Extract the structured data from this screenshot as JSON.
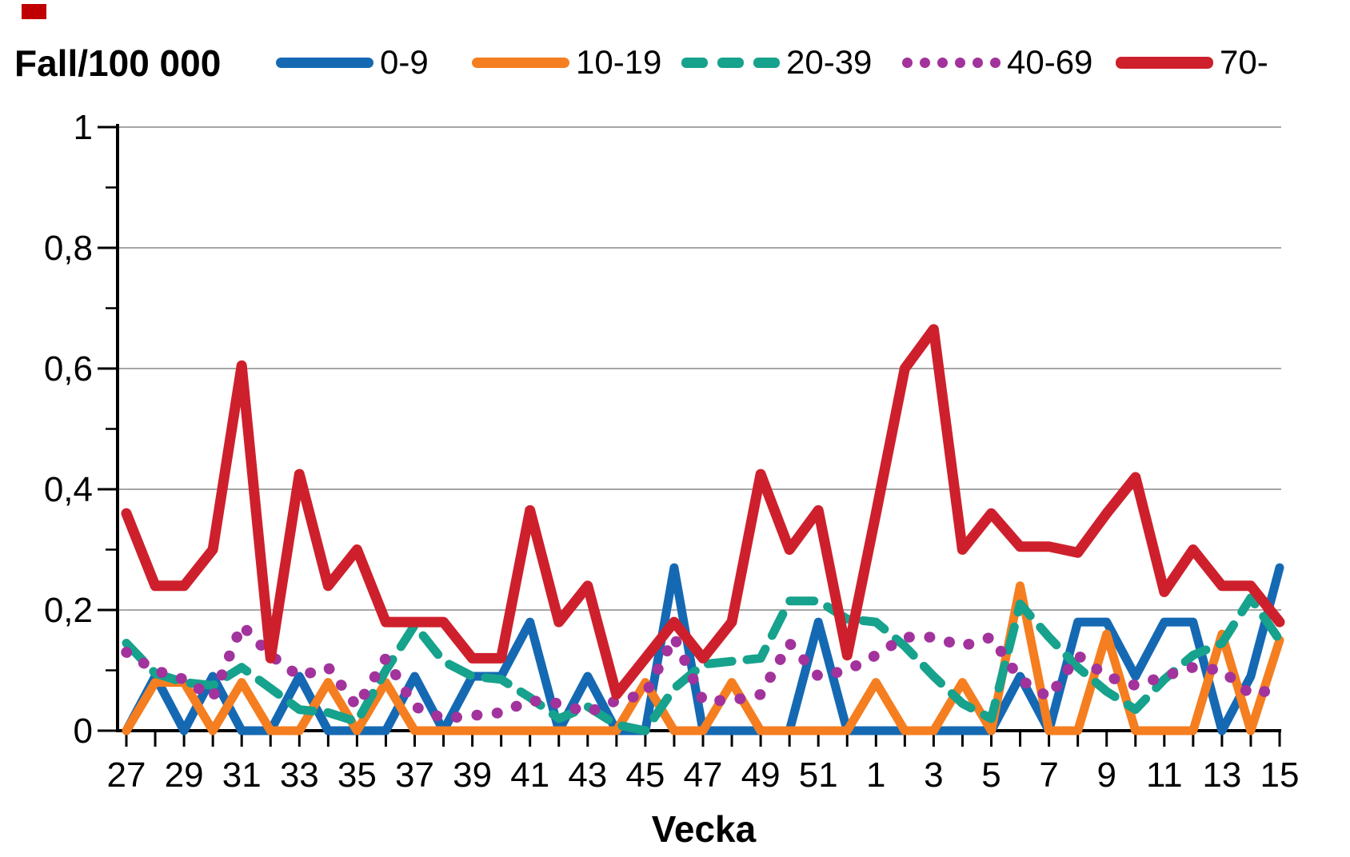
{
  "corner_marker_color": "#C00000",
  "chart_data": {
    "type": "line",
    "title": "Fall/100 000",
    "xlabel": "Vecka",
    "ylabel": "",
    "ylim": [
      0,
      1
    ],
    "grid": "horizontal",
    "legend_position": "top",
    "grid_color": "#A6A6A6",
    "axis_color": "#000000",
    "yticks": [
      {
        "v": 0,
        "label": "0"
      },
      {
        "v": 0.2,
        "label": "0,2"
      },
      {
        "v": 0.4,
        "label": "0,4"
      },
      {
        "v": 0.6,
        "label": "0,6"
      },
      {
        "v": 0.8,
        "label": "0,8"
      },
      {
        "v": 1,
        "label": "1"
      }
    ],
    "x_categories": [
      "27",
      "28",
      "29",
      "30",
      "31",
      "32",
      "33",
      "34",
      "35",
      "36",
      "37",
      "38",
      "39",
      "40",
      "41",
      "42",
      "43",
      "44",
      "45",
      "46",
      "47",
      "48",
      "49",
      "50",
      "51",
      "52",
      "1",
      "2",
      "3",
      "4",
      "5",
      "6",
      "7",
      "8",
      "9",
      "10",
      "11",
      "12",
      "13",
      "14",
      "15"
    ],
    "x_labels_visible": [
      "27",
      "29",
      "31",
      "33",
      "35",
      "37",
      "39",
      "41",
      "43",
      "45",
      "47",
      "49",
      "51",
      "1",
      "3",
      "5",
      "7",
      "9",
      "11",
      "13",
      "15"
    ],
    "series": [
      {
        "name": "0-9",
        "color": "#1569B3",
        "style": "solid",
        "width": 11,
        "values": [
          0,
          0.09,
          0,
          0.09,
          0,
          0,
          0.09,
          0,
          0,
          0,
          0.09,
          0,
          0.09,
          0.09,
          0.18,
          0,
          0.09,
          0,
          0,
          0.27,
          0,
          0,
          0,
          0,
          0.18,
          0,
          0,
          0,
          0,
          0,
          0,
          0.09,
          0,
          0.18,
          0.18,
          0.09,
          0.18,
          0.18,
          0,
          0.09,
          0.27
        ]
      },
      {
        "name": "10-19",
        "color": "#F57E20",
        "style": "solid",
        "width": 11,
        "values": [
          0,
          0.08,
          0.08,
          0,
          0.08,
          0,
          0,
          0.08,
          0,
          0.08,
          0,
          0,
          0,
          0,
          0,
          0,
          0,
          0,
          0.08,
          0,
          0,
          0.08,
          0,
          0,
          0,
          0,
          0.08,
          0,
          0,
          0.08,
          0,
          0.24,
          0,
          0,
          0.16,
          0,
          0,
          0,
          0.16,
          0,
          0.15
        ]
      },
      {
        "name": "20-39",
        "color": "#16A28C",
        "style": "dashed",
        "width": 11,
        "values": [
          0.145,
          0.095,
          0.08,
          0.075,
          0.105,
          0.07,
          0.035,
          0.03,
          0.015,
          0.1,
          0.175,
          0.115,
          0.09,
          0.085,
          0.055,
          0.02,
          0.04,
          0.01,
          0,
          0.07,
          0.11,
          0.115,
          0.12,
          0.215,
          0.215,
          0.185,
          0.18,
          0.14,
          0.09,
          0.045,
          0.02,
          0.21,
          0.155,
          0.105,
          0.065,
          0.035,
          0.085,
          0.125,
          0.145,
          0.22,
          0.15
        ]
      },
      {
        "name": "40-69",
        "color": "#A2339C",
        "style": "dotted",
        "width": 13,
        "values": [
          0.13,
          0.1,
          0.085,
          0.055,
          0.175,
          0.125,
          0.09,
          0.105,
          0.04,
          0.12,
          0.04,
          0.02,
          0.025,
          0.03,
          0.05,
          0.045,
          0.03,
          0.05,
          0.06,
          0.155,
          0.05,
          0.05,
          0.06,
          0.145,
          0.09,
          0.1,
          0.125,
          0.155,
          0.155,
          0.14,
          0.155,
          0.085,
          0.055,
          0.125,
          0.09,
          0.075,
          0.09,
          0.105,
          0.1,
          0.06,
          0.07
        ]
      },
      {
        "name": "70-",
        "color": "#CE202C",
        "style": "solid",
        "width": 13,
        "values": [
          0.36,
          0.24,
          0.24,
          0.3,
          0.605,
          0.12,
          0.425,
          0.24,
          0.3,
          0.18,
          0.18,
          0.18,
          0.12,
          0.12,
          0.365,
          0.18,
          0.24,
          0.06,
          0.12,
          0.18,
          0.12,
          0.18,
          0.425,
          0.3,
          0.365,
          0.125,
          0.36,
          0.6,
          0.665,
          0.3,
          0.36,
          0.305,
          0.305,
          0.295,
          0.36,
          0.42,
          0.23,
          0.3,
          0.24,
          0.24,
          0.18
        ]
      }
    ]
  }
}
